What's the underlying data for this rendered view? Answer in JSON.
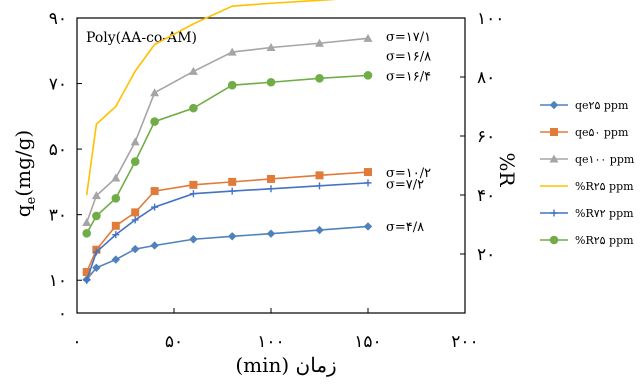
{
  "chart_data": {
    "type": "line",
    "title": "Poly(AA-co-AM)",
    "xlabel": "زمان (min)",
    "ylabel_left": "qe(mg/g)",
    "ylabel_left_base": "q",
    "ylabel_left_sub": "e",
    "ylabel_left_unit": "(mg/g)",
    "ylabel_right": "%R",
    "xlim": [
      0,
      200
    ],
    "ylim_left": [
      0,
      90
    ],
    "ylim_right": [
      0,
      100
    ],
    "x_ticks": [
      0,
      50,
      100,
      150,
      200
    ],
    "x_tick_labels": [
      "۰",
      "۵۰",
      "۱۰۰",
      "۱۵۰",
      "۲۰۰"
    ],
    "y_left_ticks": [
      0,
      10,
      30,
      50,
      70,
      90
    ],
    "y_left_tick_labels": [
      "۰",
      "۱۰",
      "۳۰",
      "۵۰",
      "۷۰",
      "۹۰"
    ],
    "y_right_ticks": [
      20,
      40,
      60,
      80,
      100
    ],
    "y_right_tick_labels": [
      "۲۰",
      "۴۰",
      "۶۰",
      "۸۰",
      "۱۰۰"
    ],
    "grid": false,
    "legend_position": "right",
    "x": [
      5,
      10,
      20,
      30,
      40,
      60,
      80,
      100,
      125,
      150
    ],
    "series": [
      {
        "name": "qe۲۵ ppm",
        "axis": "left",
        "color": "#4f81bd",
        "marker": "diamond",
        "values": [
          10.2,
          13.8,
          16.3,
          19.5,
          20.6,
          22.5,
          23.4,
          24.2,
          25.3,
          26.4
        ]
      },
      {
        "name": "qe۵۰ ppm",
        "axis": "left",
        "color": "#e07b39",
        "marker": "square",
        "values": [
          12.5,
          19.3,
          26.6,
          30.7,
          37.2,
          39.1,
          40.0,
          40.9,
          42.0,
          43.0
        ]
      },
      {
        "name": "qe۱۰۰ ppm",
        "axis": "left",
        "color": "#a5a5a5",
        "marker": "triangle",
        "values": [
          27.6,
          35.8,
          41.2,
          52.2,
          67.2,
          73.7,
          79.6,
          81.0,
          82.3,
          83.8
        ]
      },
      {
        "name": "%R۲۵ ppm",
        "axis": "right",
        "color": "#ffc000",
        "marker": "none",
        "values": [
          40,
          64,
          70,
          82,
          91,
          98,
          104,
          105,
          106,
          107
        ]
      },
      {
        "name": "%R۷۲ ppm",
        "axis": "left",
        "color": "#4472c4",
        "marker": "plus",
        "values": [
          10.0,
          18.6,
          23.9,
          28.4,
          32.3,
          36.4,
          37.2,
          37.9,
          38.8,
          39.7
        ]
      },
      {
        "name": "%R۲۵ ppm",
        "axis": "left",
        "color": "#70ad47",
        "marker": "circle",
        "values": [
          24.3,
          29.6,
          35.0,
          46.2,
          58.4,
          62.5,
          69.5,
          70.4,
          71.6,
          72.5
        ]
      }
    ],
    "annotations": [
      {
        "text": "σ=۱۷/۱",
        "x": 150,
        "y_left": 84.5
      },
      {
        "text": "σ=۱۶/۸",
        "x": 150,
        "y_left": 78.5
      },
      {
        "text": "σ=۱۶/۴",
        "x": 150,
        "y_left": 72.5
      },
      {
        "text": "σ=۱۰/۲",
        "x": 150,
        "y_left": 43.0
      },
      {
        "text": "σ=۷/۲",
        "x": 150,
        "y_left": 39.5
      },
      {
        "text": "σ=۴/۸",
        "x": 150,
        "y_left": 26.5
      }
    ]
  }
}
